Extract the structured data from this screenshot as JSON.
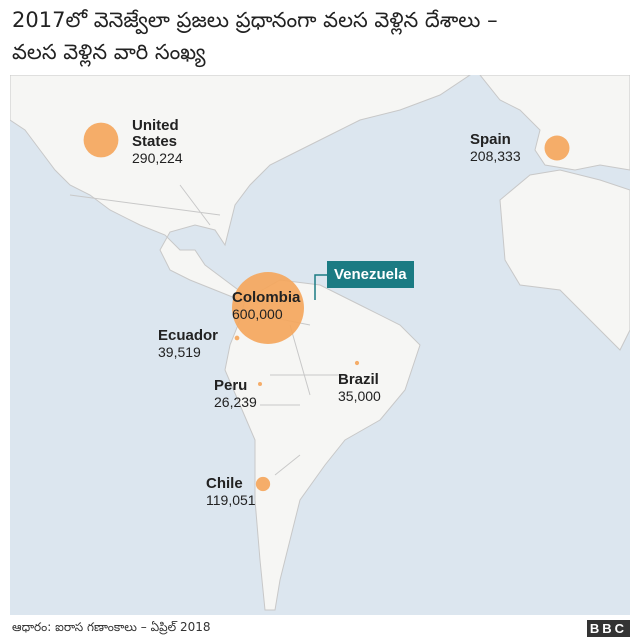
{
  "title_lines": [
    "2017లో వెనెజ్వేలా ప్రజలు ప్రధానంగా వలస వెళ్లిన దేశాలు –",
    "వలస వెళ్లిన వారి సంఖ్య"
  ],
  "countries": [
    {
      "name": "United States",
      "value": 290224,
      "label": "290,224"
    },
    {
      "name": "Spain",
      "value": 208333,
      "label": "208,333"
    },
    {
      "name": "Colombia",
      "value": 600000,
      "label": "600,000"
    },
    {
      "name": "Ecuador",
      "value": 39519,
      "label": "39,519"
    },
    {
      "name": "Peru",
      "value": 26239,
      "label": "26,239"
    },
    {
      "name": "Brazil",
      "value": 35000,
      "label": "35,000"
    },
    {
      "name": "Chile",
      "value": 119051,
      "label": "119,051"
    }
  ],
  "highlight": "Venezuela",
  "bubble_color": "#f5a55a",
  "source": "ఆధారం: ఐరాస గణాంకాలు – ఏప్రిల్ 2018",
  "logo": "BBC"
}
